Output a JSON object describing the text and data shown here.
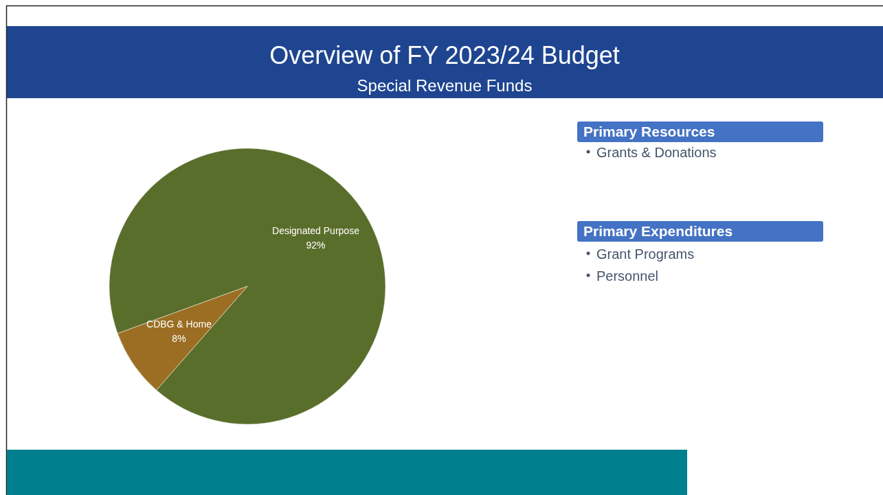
{
  "chart_data": {
    "type": "pie",
    "title": "Overview of FY 2023/24 Budget",
    "subtitle": "Special Revenue Funds",
    "categories": [
      "Designated Purpose",
      "CDBG & Home"
    ],
    "values": [
      92,
      8
    ],
    "colors": [
      "#5a6e2b",
      "#9b6e23"
    ],
    "value_labels": [
      "92%",
      "8%"
    ],
    "annotations": [
      "Primary Resources",
      "Grants & Donations",
      "Primary Expenditures",
      "Grant Programs",
      "Personnel"
    ]
  }
}
